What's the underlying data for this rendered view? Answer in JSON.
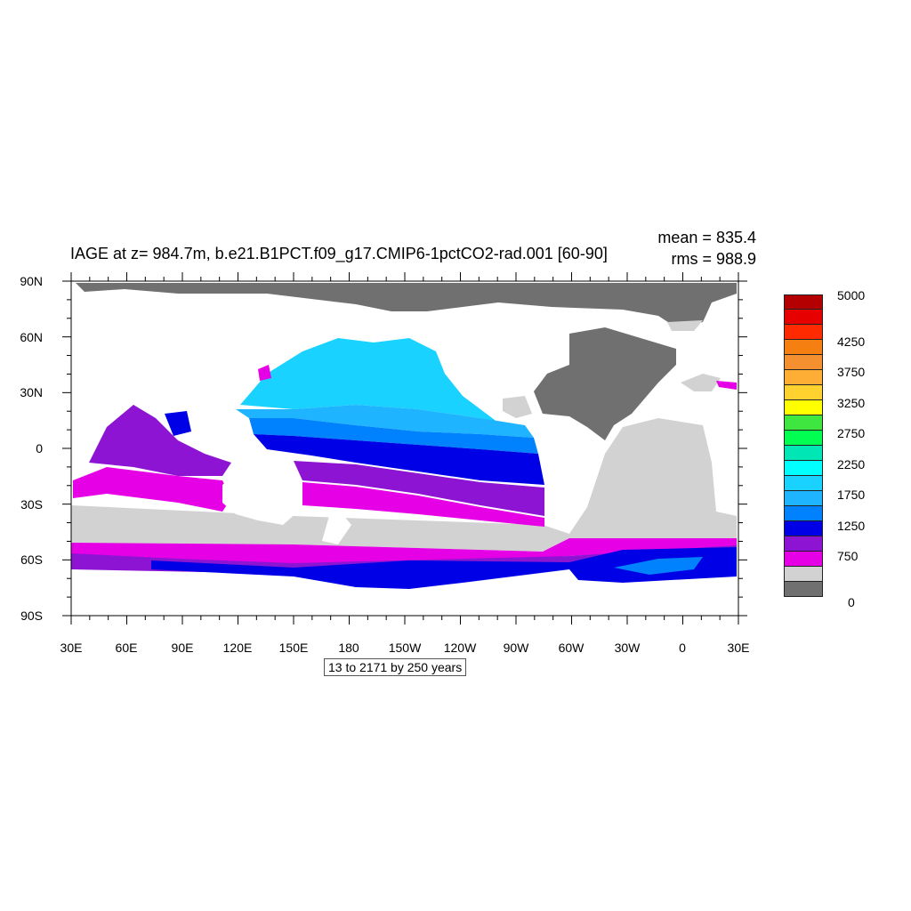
{
  "title": "IAGE at z= 984.7m, b.e21.B1PCT.f09_g17.CMIP6-1pctCO2-rad.001 [60-90]",
  "stats": {
    "mean": "mean = 835.4",
    "rms": "rms = 988.9"
  },
  "time_range": "13 to 2171 by 250 years",
  "lat_labels": [
    "90N",
    "60N",
    "30N",
    "0",
    "30S",
    "60S",
    "90S"
  ],
  "lon_labels": [
    "30E",
    "60E",
    "90E",
    "120E",
    "150E",
    "180",
    "150W",
    "120W",
    "90W",
    "60W",
    "30W",
    "0",
    "30E"
  ],
  "colorbar": {
    "labels": [
      "5000",
      "4250",
      "3750",
      "3250",
      "2750",
      "2250",
      "1750",
      "1250",
      "750",
      "0"
    ],
    "colors": [
      "#b40000",
      "#e60000",
      "#ff2a00",
      "#f57f10",
      "#f59030",
      "#ffae35",
      "#ffd230",
      "#ffff00",
      "#40e640",
      "#00ff50",
      "#00e6b4",
      "#00ffff",
      "#19d2ff",
      "#1eb4ff",
      "#0082ff",
      "#0000e6",
      "#8c14d2",
      "#e600e6",
      "#d2d2d2",
      "#707070"
    ]
  },
  "legend_colors": {
    "land": "#ffffff",
    "arctic": "#707070",
    "southern": "#d2d2d2"
  }
}
